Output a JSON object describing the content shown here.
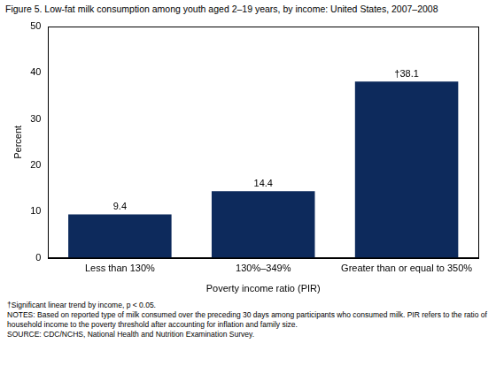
{
  "chart_data": {
    "type": "bar",
    "title": "Figure 5. Low-fat milk consumption among youth aged 2–19 years, by income: United States, 2007–2008",
    "x_label": "Poverty income ratio (PIR)",
    "y_label": "Percent",
    "categories": [
      "Less than 130%",
      "130%–349%",
      "Greater than or equal to 350%"
    ],
    "values": [
      9.4,
      14.4,
      38.1
    ],
    "value_labels": [
      "9.4",
      "14.4",
      "†38.1"
    ],
    "data_labels": true,
    "color": "#0d2a5c",
    "ylim": [
      0,
      50
    ],
    "yticks": [
      0,
      10,
      20,
      30,
      40,
      50
    ],
    "grid": false,
    "footnotes": [
      "†Significant linear trend by income, p < 0.05.",
      "NOTES: Based on reported type of milk consumed over the preceding 30 days among participants who consumed milk. PIR refers to the ratio of household income to the poverty threshold after accounting for inflation and family size.",
      "SOURCE: CDC/NCHS, National Health and Nutrition Examination Survey."
    ]
  }
}
